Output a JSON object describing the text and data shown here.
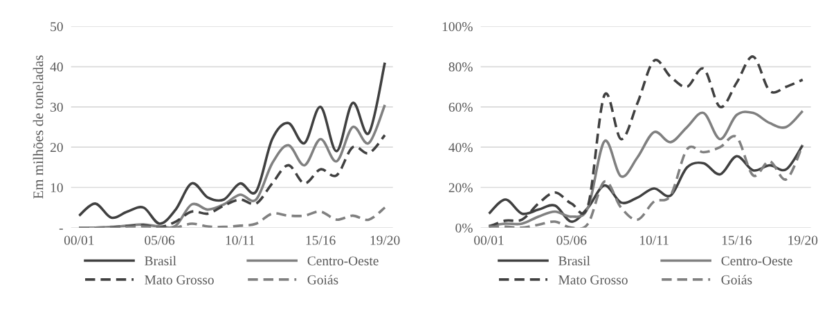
{
  "chart_data": [
    {
      "type": "line",
      "ylabel": "Em milhões de toneladas",
      "categories": [
        "00/01",
        null,
        null,
        null,
        null,
        "05/06",
        null,
        null,
        null,
        null,
        "10/11",
        null,
        null,
        null,
        null,
        "15/16",
        null,
        null,
        null,
        "19/20"
      ],
      "ylim": [
        0,
        50
      ],
      "yticks": [
        {
          "value": 0,
          "label": "-"
        },
        10,
        20,
        30,
        40,
        50
      ],
      "grid": "y",
      "legend": "bottom",
      "marker": "none",
      "series": [
        {
          "name": "Brasil",
          "color": "#404040",
          "line_style": "solid",
          "values": [
            3,
            6,
            2.5,
            4,
            5,
            1,
            4.5,
            11,
            7.5,
            7,
            11,
            9,
            22,
            26,
            21,
            30,
            19,
            31,
            23.5,
            41
          ]
        },
        {
          "name": "Centro-Oeste",
          "color": "#808080",
          "line_style": "solid",
          "values": [
            0,
            0,
            0.2,
            0.5,
            0.8,
            0.3,
            0.5,
            5.8,
            4.5,
            5.8,
            8.2,
            7,
            16,
            20.5,
            15.5,
            22,
            16.5,
            25,
            21,
            30.5
          ]
        },
        {
          "name": "Mato Grosso",
          "color": "#404040",
          "line_style": "dashed",
          "values": [
            0,
            0,
            0.1,
            0.4,
            0.6,
            0.1,
            1.5,
            4,
            3.5,
            5.5,
            7,
            6,
            11,
            15.5,
            11,
            14.5,
            13,
            20,
            18.5,
            23
          ]
        },
        {
          "name": "Goiás",
          "color": "#808080",
          "line_style": "dashed",
          "values": [
            0,
            0,
            0,
            0.2,
            0.3,
            0,
            0,
            1,
            0.3,
            0.2,
            0.5,
            1,
            3.5,
            3,
            3,
            4,
            2,
            3,
            2,
            5
          ]
        }
      ]
    },
    {
      "type": "line",
      "categories": [
        "00/01",
        null,
        null,
        null,
        null,
        "05/06",
        null,
        null,
        null,
        null,
        "10/11",
        null,
        null,
        null,
        null,
        "15/16",
        null,
        null,
        null,
        "19/20"
      ],
      "ylim": [
        0,
        100
      ],
      "yticks": [
        {
          "value": 0,
          "label": "0%"
        },
        {
          "value": 20,
          "label": "20%"
        },
        {
          "value": 40,
          "label": "40%"
        },
        {
          "value": 60,
          "label": "60%"
        },
        {
          "value": 80,
          "label": "80%"
        },
        {
          "value": 100,
          "label": "100%"
        }
      ],
      "grid": "y",
      "legend": "bottom",
      "marker": "none",
      "series": [
        {
          "name": "Brasil",
          "color": "#404040",
          "line_style": "solid",
          "values": [
            7,
            14,
            7,
            9,
            11,
            3,
            10,
            21,
            12.5,
            15,
            19.5,
            16,
            30,
            32,
            26.5,
            35.5,
            28.5,
            31,
            29,
            41
          ]
        },
        {
          "name": "Centro-Oeste",
          "color": "#808080",
          "line_style": "solid",
          "values": [
            1,
            2,
            2,
            5.5,
            8,
            5.5,
            10,
            43,
            25.5,
            35,
            47.5,
            42.5,
            50,
            57,
            44,
            56,
            57,
            52,
            50,
            58
          ]
        },
        {
          "name": "Mato Grosso",
          "color": "#404040",
          "line_style": "dashed",
          "values": [
            0.5,
            3.5,
            4,
            12,
            17.5,
            12,
            11,
            66,
            44,
            62,
            83,
            75,
            70,
            79,
            60,
            72,
            85,
            68,
            70,
            73.5
          ]
        },
        {
          "name": "Goiás",
          "color": "#808080",
          "line_style": "dashed",
          "values": [
            0.5,
            0.5,
            0,
            1.5,
            3,
            0,
            2,
            23,
            10,
            4,
            13,
            16,
            39,
            37.5,
            40,
            45,
            26,
            33,
            24,
            41
          ]
        }
      ]
    }
  ]
}
